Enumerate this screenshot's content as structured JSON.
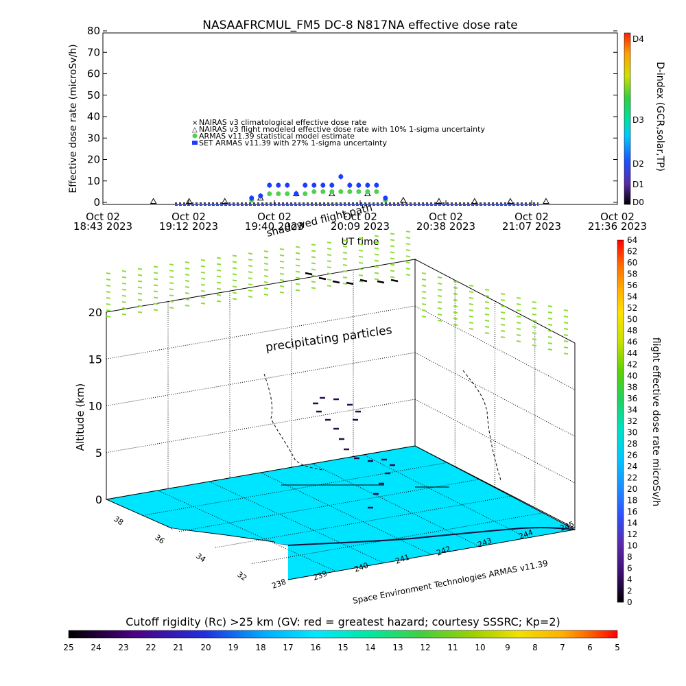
{
  "colors": {
    "dose_colorbar": [
      "#000000",
      "#3b0f6f",
      "#5a2aa8",
      "#3050f8",
      "#1e90ff",
      "#00c8ff",
      "#00e0c0",
      "#20d060",
      "#60d000",
      "#c8e000",
      "#ffe000",
      "#ffa000",
      "#ff6000",
      "#ff2000",
      "#ff0000"
    ],
    "rc_colorbar": [
      "#000000",
      "#4b0082",
      "#2030e0",
      "#00b0ff",
      "#00e8ff",
      "#00e8a0",
      "#40d040",
      "#a0d000",
      "#f0e000",
      "#ffb000",
      "#ff6000",
      "#ff0000"
    ],
    "surface": "#00e5ff",
    "precip": "#8fdc32",
    "series_armas": "#1e3cff",
    "series_armas_model": "#50d050"
  },
  "chart_data": [
    {
      "type": "scatter",
      "title": "NASAAFRCMUL_FM5 DC-8   N817NA effective dose rate",
      "xlabel": "UT time",
      "ylabel": "Effective dose rate (microSv/h)",
      "ylim": [
        0,
        80
      ],
      "yticks": [
        "0",
        "10",
        "20",
        "30",
        "40",
        "50",
        "60",
        "70",
        "80"
      ],
      "xticks": [
        {
          "l1": "Oct 02",
          "l2": "18:43 2023"
        },
        {
          "l1": "Oct 02",
          "l2": "19:12 2023"
        },
        {
          "l1": "Oct 02",
          "l2": "19:40 2023"
        },
        {
          "l1": "Oct 02",
          "l2": "20:09 2023"
        },
        {
          "l1": "Oct 02",
          "l2": "20:38 2023"
        },
        {
          "l1": "Oct 02",
          "l2": "21:07 2023"
        },
        {
          "l1": "Oct 02",
          "l2": "21:36 2023"
        }
      ],
      "right_axis": {
        "label": "D-index (GCR,solar,TP)",
        "ticks": [
          "D0",
          "D1",
          "D2",
          "D3",
          "D4"
        ]
      },
      "legend": [
        "NAIRAS v3 climatological effective dose rate",
        "NAIRAS v3 flight modeled effective dose rate with 10% 1-sigma uncertainty",
        "ARMAS v11.39 statistical model estimate",
        "SET ARMAS v11.39 with 27% 1-sigma uncertainty"
      ],
      "series": [
        {
          "name": "SET ARMAS v11.39 with 27% 1-sigma uncertainty",
          "x_hours": [
            19.55,
            19.6,
            19.65,
            19.7,
            19.75,
            19.8,
            19.85,
            19.9,
            19.95,
            20.0,
            20.05,
            20.1,
            20.15,
            20.2,
            20.25,
            20.3
          ],
          "values": [
            2,
            3,
            8,
            8,
            8,
            4,
            8,
            8,
            8,
            8,
            12,
            8,
            8,
            8,
            8,
            2
          ]
        },
        {
          "name": "ARMAS v11.39 statistical model estimate",
          "x_hours": [
            19.55,
            19.6,
            19.65,
            19.7,
            19.75,
            19.8,
            19.85,
            19.9,
            19.95,
            20.0,
            20.05,
            20.1,
            20.15,
            20.2,
            20.25,
            20.3
          ],
          "values": [
            1,
            3,
            4,
            4,
            4,
            4,
            4,
            5,
            5,
            5,
            5,
            5,
            5,
            5,
            5,
            1
          ]
        },
        {
          "name": "NAIRAS v3 flight modeled effective dose rate with 10% 1-sigma uncertainty",
          "x_hours": [
            19.0,
            19.2,
            19.4,
            19.6,
            19.8,
            20.0,
            20.2,
            20.4,
            20.6,
            20.8,
            21.0,
            21.2
          ],
          "values": [
            0.5,
            0.5,
            0.5,
            2,
            4,
            4,
            4,
            1,
            0.5,
            0.5,
            0.5,
            0.5
          ]
        }
      ],
      "annotations": [
        "shadowed flight path"
      ]
    },
    {
      "type": "scatter",
      "title": "",
      "ylabel": "Altitude (km)",
      "zticks": [
        "0",
        "5",
        "10",
        "15",
        "20"
      ],
      "lat_ticks": [
        "38",
        "36",
        "34",
        "32"
      ],
      "lon_ticks": [
        "238",
        "239",
        "240",
        "241",
        "242",
        "243",
        "244",
        "245"
      ],
      "annotations": [
        "precipitating particles"
      ],
      "footer": "Space Environment Technologies ARMAS v11.39",
      "colorbar_label": "flight effective dose rate microSv/h",
      "colorbar_ticks": [
        "0",
        "2",
        "4",
        "6",
        "8",
        "10",
        "12",
        "14",
        "16",
        "18",
        "20",
        "22",
        "24",
        "26",
        "28",
        "30",
        "32",
        "34",
        "36",
        "38",
        "40",
        "42",
        "44",
        "46",
        "48",
        "50",
        "52",
        "54",
        "56",
        "58",
        "60",
        "62",
        "64"
      ]
    }
  ],
  "bottom_colorbar": {
    "label": "Cutoff rigidity (Rc) >25 km (GV: red = greatest hazard; courtesy SSSRC; Kp=2)",
    "ticks": [
      "25",
      "24",
      "23",
      "22",
      "21",
      "20",
      "19",
      "18",
      "17",
      "16",
      "15",
      "14",
      "13",
      "12",
      "11",
      "10",
      "9",
      "8",
      "7",
      "6",
      "5"
    ]
  }
}
